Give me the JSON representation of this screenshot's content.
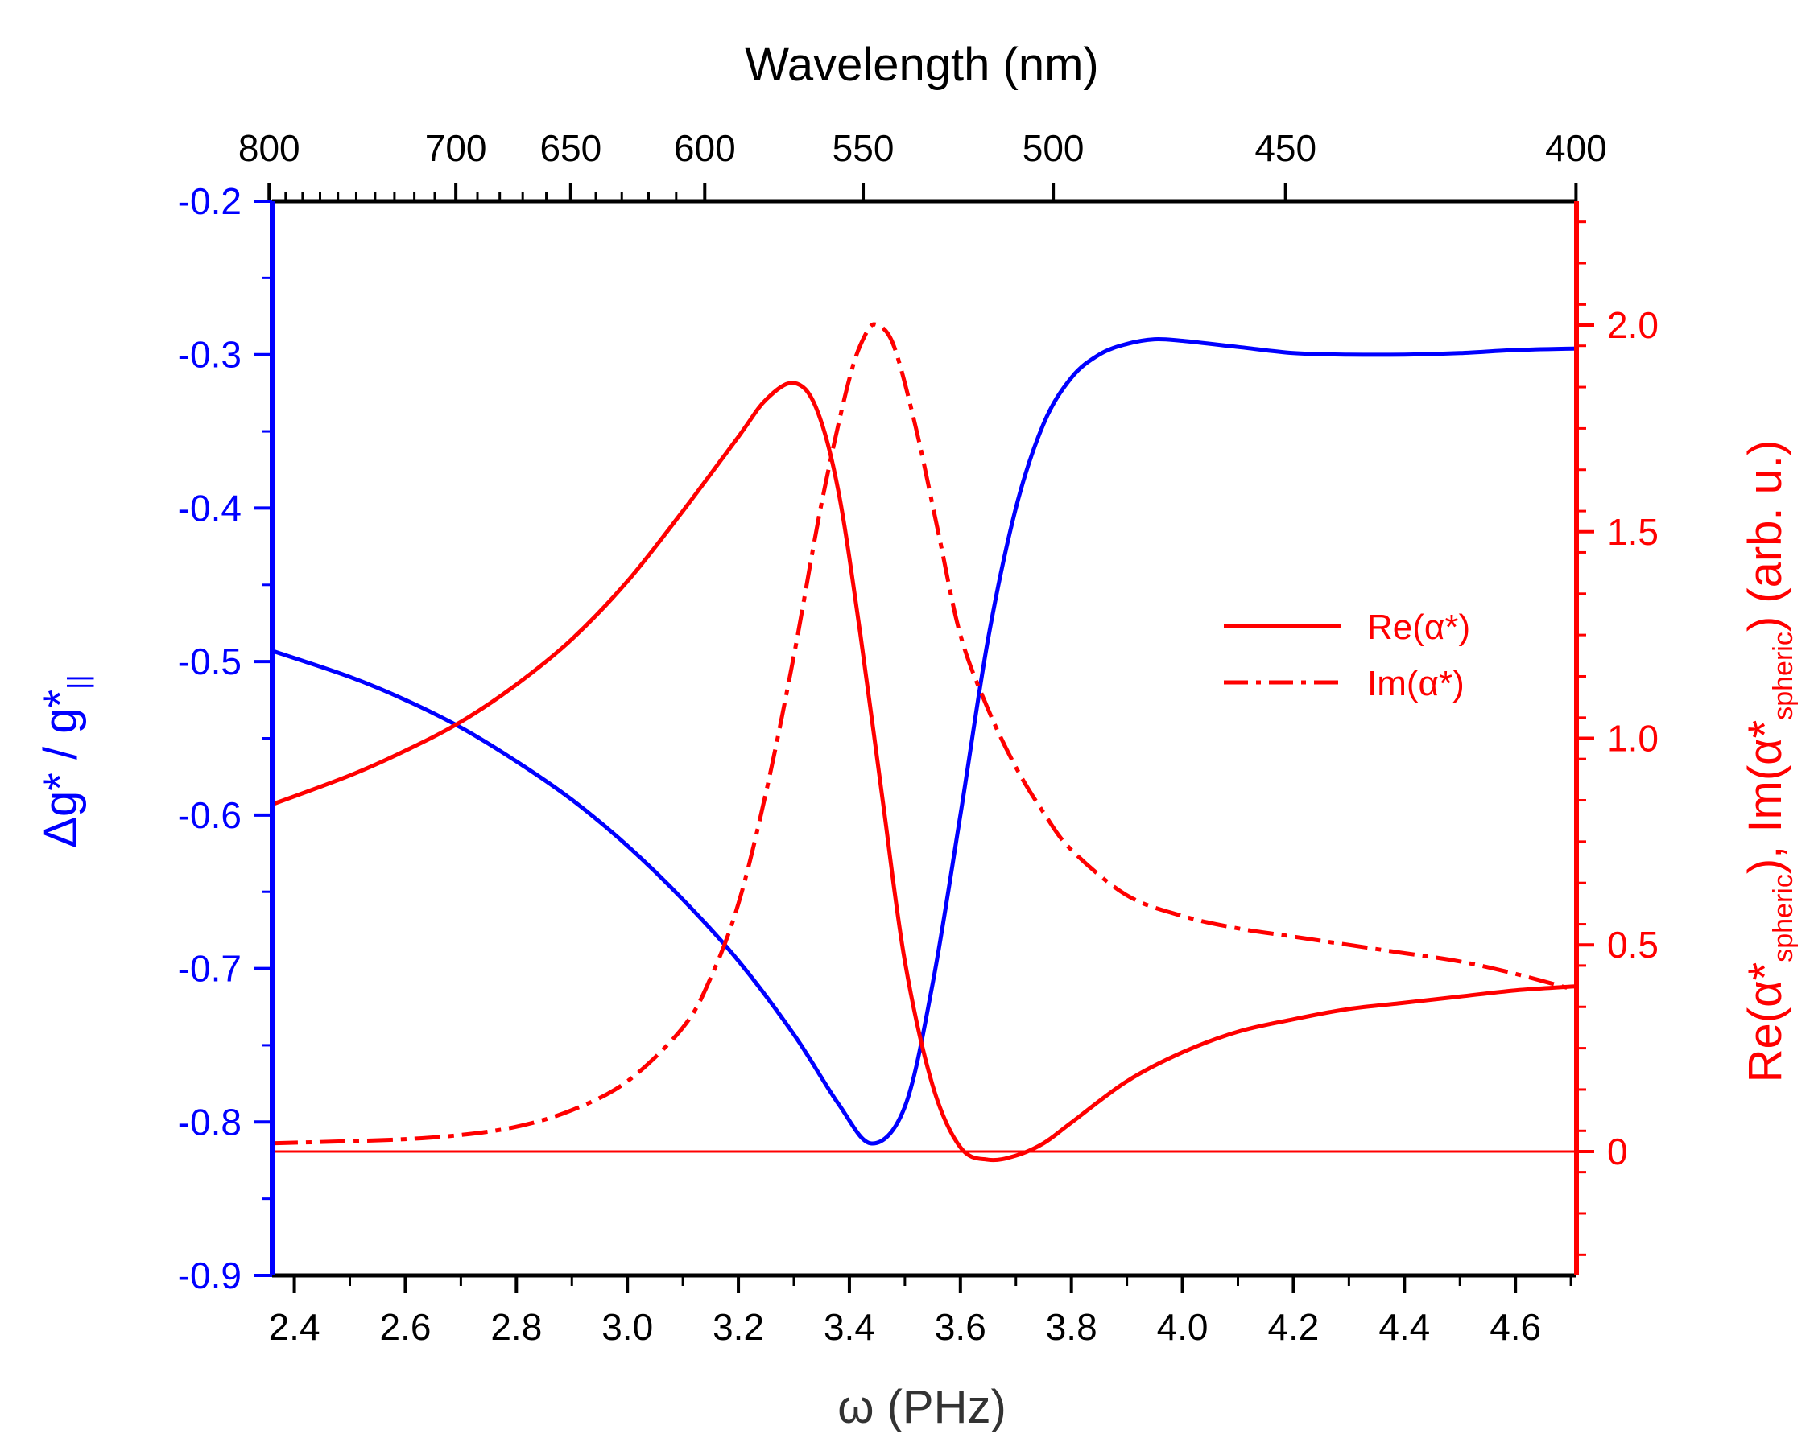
{
  "chart_data": {
    "type": "line",
    "title": "",
    "top_axis": {
      "label": "Wavelength (nm)",
      "tick_labels": [
        "800",
        "700",
        "650",
        "600",
        "550",
        "500",
        "450",
        "400"
      ],
      "tick_values_nm": [
        800,
        700,
        650,
        600,
        550,
        500,
        450,
        400
      ],
      "conversion": "omega_PHz = 1883.65 / wavelength_nm"
    },
    "x_axis": {
      "label": "ω (PHz)",
      "range": [
        2.36,
        4.71
      ],
      "tick_labels": [
        "2.4",
        "2.6",
        "2.8",
        "3.0",
        "3.2",
        "3.4",
        "3.6",
        "3.8",
        "4.0",
        "4.2",
        "4.4",
        "4.6"
      ],
      "tick_values": [
        2.4,
        2.6,
        2.8,
        3.0,
        3.2,
        3.4,
        3.6,
        3.8,
        4.0,
        4.2,
        4.4,
        4.6
      ]
    },
    "left_axis": {
      "label": "Δg* / g*",
      "label_subscript": "||",
      "range": [
        -0.9,
        -0.2
      ],
      "tick_labels": [
        "-0.2",
        "-0.3",
        "-0.4",
        "-0.5",
        "-0.6",
        "-0.7",
        "-0.8",
        "-0.9"
      ],
      "tick_values": [
        -0.2,
        -0.3,
        -0.4,
        -0.5,
        -0.6,
        -0.7,
        -0.8,
        -0.9
      ],
      "color": "#0000ff"
    },
    "right_axis": {
      "label_parts": [
        "Re(α*",
        "spheric",
        "), Im(α*",
        "spheric",
        ") (arb. u.)"
      ],
      "range": [
        -0.3,
        2.3
      ],
      "tick_labels": [
        "2.0",
        "1.5",
        "1.0",
        "0.5",
        "0"
      ],
      "tick_values": [
        2.0,
        1.5,
        1.0,
        0.5,
        0.0
      ],
      "color": "#ff0000"
    },
    "legend": {
      "position": "right-center",
      "entries": [
        {
          "label": "Re(α*)",
          "style": "solid",
          "color": "#ff0000"
        },
        {
          "label": "Im(α*)",
          "style": "dash-dot",
          "color": "#ff0000"
        }
      ]
    },
    "series": [
      {
        "name": "Δg*/g*||",
        "axis": "left",
        "color": "#0000ff",
        "style": "solid",
        "x": [
          2.36,
          2.5,
          2.6,
          2.7,
          2.8,
          2.9,
          3.0,
          3.1,
          3.2,
          3.3,
          3.38,
          3.44,
          3.5,
          3.55,
          3.6,
          3.65,
          3.7,
          3.75,
          3.8,
          3.85,
          3.9,
          3.95,
          4.0,
          4.1,
          4.2,
          4.3,
          4.4,
          4.5,
          4.6,
          4.71
        ],
        "y": [
          -0.493,
          -0.51,
          -0.525,
          -0.543,
          -0.565,
          -0.59,
          -0.62,
          -0.655,
          -0.695,
          -0.743,
          -0.788,
          -0.814,
          -0.79,
          -0.71,
          -0.6,
          -0.485,
          -0.4,
          -0.345,
          -0.315,
          -0.3,
          -0.293,
          -0.29,
          -0.291,
          -0.295,
          -0.299,
          -0.3,
          -0.3,
          -0.299,
          -0.297,
          -0.296
        ]
      },
      {
        "name": "Re(α*)",
        "axis": "right",
        "color": "#ff0000",
        "style": "solid",
        "x": [
          2.36,
          2.5,
          2.6,
          2.7,
          2.8,
          2.9,
          3.0,
          3.1,
          3.2,
          3.25,
          3.3,
          3.34,
          3.38,
          3.42,
          3.46,
          3.5,
          3.55,
          3.6,
          3.65,
          3.7,
          3.75,
          3.8,
          3.9,
          4.0,
          4.1,
          4.2,
          4.3,
          4.4,
          4.5,
          4.6,
          4.71
        ],
        "y": [
          0.84,
          0.91,
          0.97,
          1.04,
          1.13,
          1.24,
          1.38,
          1.55,
          1.73,
          1.82,
          1.86,
          1.8,
          1.6,
          1.25,
          0.85,
          0.46,
          0.16,
          0.01,
          -0.02,
          -0.01,
          0.02,
          0.07,
          0.17,
          0.24,
          0.29,
          0.32,
          0.345,
          0.36,
          0.375,
          0.39,
          0.4
        ]
      },
      {
        "name": "Im(α*)",
        "axis": "right",
        "color": "#ff0000",
        "style": "dash-dot",
        "x": [
          2.36,
          2.5,
          2.6,
          2.7,
          2.8,
          2.9,
          3.0,
          3.1,
          3.15,
          3.2,
          3.25,
          3.3,
          3.35,
          3.4,
          3.43,
          3.45,
          3.48,
          3.52,
          3.56,
          3.6,
          3.65,
          3.7,
          3.75,
          3.8,
          3.9,
          4.0,
          4.1,
          4.2,
          4.3,
          4.4,
          4.5,
          4.6,
          4.71
        ],
        "y": [
          0.02,
          0.025,
          0.03,
          0.04,
          0.06,
          0.1,
          0.17,
          0.3,
          0.42,
          0.6,
          0.87,
          1.2,
          1.57,
          1.87,
          1.98,
          2.0,
          1.95,
          1.75,
          1.5,
          1.25,
          1.07,
          0.93,
          0.82,
          0.73,
          0.62,
          0.57,
          0.54,
          0.52,
          0.5,
          0.48,
          0.46,
          0.43,
          0.39
        ]
      },
      {
        "name": "zero line",
        "axis": "right",
        "color": "#ff0000",
        "style": "thin",
        "x": [
          2.36,
          4.71
        ],
        "y": [
          0.0,
          0.0
        ]
      }
    ]
  }
}
